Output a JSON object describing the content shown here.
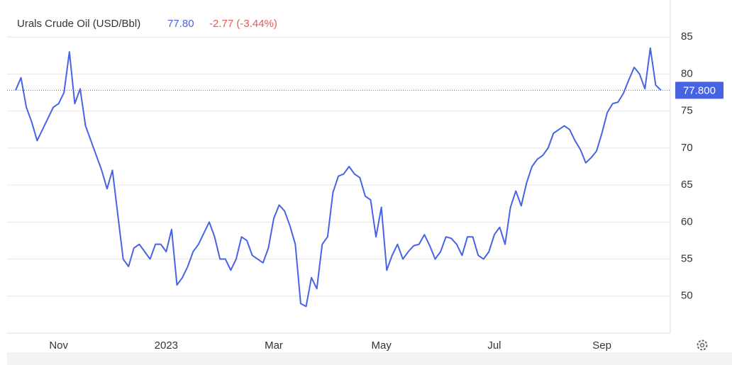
{
  "chart_data": {
    "type": "line",
    "title": "Urals Crude Oil (USD/Bbl)",
    "price": "77.80",
    "change": "-2.77 (-3.44%)",
    "last": {
      "value": 77.8,
      "label": "77.800"
    },
    "categories": [
      null,
      null,
      null,
      null,
      null,
      null,
      null,
      null,
      "Nov",
      null,
      null,
      null,
      null,
      null,
      null,
      null,
      null,
      null,
      null,
      null,
      null,
      null,
      null,
      null,
      null,
      null,
      null,
      null,
      "2023",
      null,
      null,
      null,
      null,
      null,
      null,
      null,
      null,
      null,
      null,
      null,
      null,
      null,
      null,
      null,
      null,
      null,
      null,
      null,
      "Mar",
      null,
      null,
      null,
      null,
      null,
      null,
      null,
      null,
      null,
      null,
      null,
      null,
      null,
      null,
      null,
      null,
      null,
      null,
      null,
      "May",
      null,
      null,
      null,
      null,
      null,
      null,
      null,
      null,
      null,
      null,
      null,
      null,
      null,
      null,
      null,
      null,
      null,
      null,
      null,
      null,
      "Jul",
      null,
      null,
      null,
      null,
      null,
      null,
      null,
      null,
      null,
      null,
      null,
      null,
      null,
      null,
      null,
      null,
      null,
      null,
      null,
      "Sep",
      null,
      null,
      null,
      null,
      null,
      null,
      null,
      null,
      null,
      null,
      null
    ],
    "series": [
      {
        "name": "Urals Crude Oil",
        "color": "#4763e4",
        "values": [
          77.8,
          79.5,
          75.5,
          73.5,
          71,
          72.5,
          74,
          75.5,
          76,
          77.5,
          83,
          76,
          78,
          73,
          71,
          69,
          67,
          64.5,
          67,
          61,
          55,
          54,
          56.5,
          57,
          56,
          55,
          57,
          57,
          56,
          59,
          51.5,
          52.5,
          54,
          56,
          57,
          58.5,
          60,
          58,
          55,
          55,
          53.5,
          55,
          58,
          57.5,
          55.5,
          55,
          54.5,
          56.5,
          60.5,
          62.3,
          61.5,
          59.5,
          57,
          49,
          48.6,
          52.5,
          51,
          57,
          58,
          64,
          66.2,
          66.5,
          67.5,
          66.5,
          66,
          63.5,
          63,
          58,
          62,
          53.5,
          55.5,
          57,
          55,
          56,
          56.8,
          57,
          58.3,
          56.8,
          55,
          56,
          58,
          57.8,
          57,
          55.5,
          58,
          58,
          55.5,
          55,
          56,
          58.3,
          59.3,
          57,
          62,
          64.2,
          62.2,
          65.3,
          67.5,
          68.5,
          69,
          70,
          72,
          72.5,
          73,
          72.5,
          71,
          69.8,
          68,
          68.7,
          69.6,
          72,
          74.8,
          76,
          76.2,
          77.4,
          79.2,
          80.9,
          80,
          78,
          83.5,
          78.5,
          77.8
        ]
      }
    ],
    "ylim": [
      45,
      90
    ],
    "yticks": [
      50,
      55,
      60,
      65,
      70,
      75,
      80,
      85
    ],
    "grid": true
  }
}
